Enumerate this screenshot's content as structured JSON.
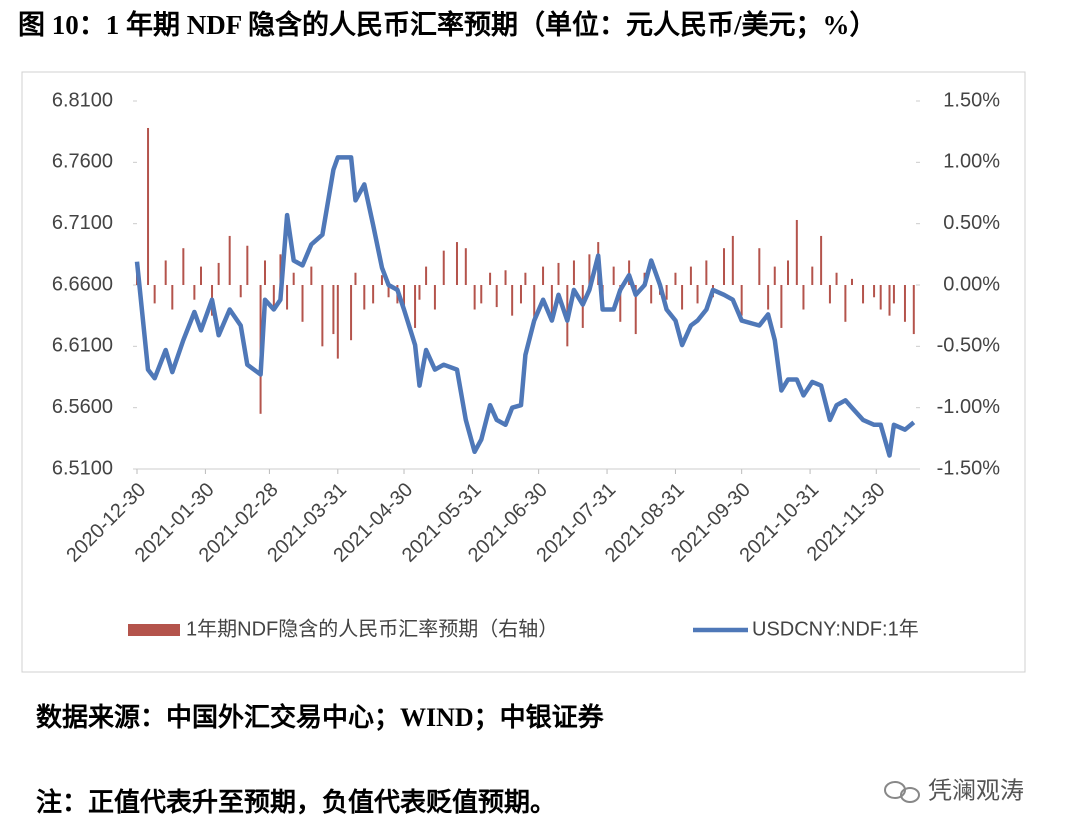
{
  "chart_data": {
    "type": "combo",
    "title": "图 10：1 年期 NDF 隐含的人民币汇率预期（单位：元人民币/美元；%）",
    "x": [
      "2020-12-30",
      "2021-01-04",
      "2021-01-07",
      "2021-01-12",
      "2021-01-15",
      "2021-01-20",
      "2021-01-25",
      "2021-01-28",
      "2021-02-02",
      "2021-02-05",
      "2021-02-10",
      "2021-02-15",
      "2021-02-18",
      "2021-02-24",
      "2021-02-26",
      "2021-03-02",
      "2021-03-05",
      "2021-03-08",
      "2021-03-11",
      "2021-03-15",
      "2021-03-19",
      "2021-03-24",
      "2021-03-29",
      "2021-03-31",
      "2021-04-06",
      "2021-04-08",
      "2021-04-12",
      "2021-04-16",
      "2021-04-20",
      "2021-04-23",
      "2021-04-27",
      "2021-04-30",
      "2021-05-05",
      "2021-05-07",
      "2021-05-10",
      "2021-05-14",
      "2021-05-18",
      "2021-05-24",
      "2021-05-28",
      "2021-06-01",
      "2021-06-04",
      "2021-06-08",
      "2021-06-11",
      "2021-06-15",
      "2021-06-18",
      "2021-06-22",
      "2021-06-24",
      "2021-06-28",
      "2021-07-02",
      "2021-07-06",
      "2021-07-09",
      "2021-07-13",
      "2021-07-16",
      "2021-07-20",
      "2021-07-23",
      "2021-07-27",
      "2021-07-29",
      "2021-08-03",
      "2021-08-06",
      "2021-08-10",
      "2021-08-13",
      "2021-08-17",
      "2021-08-20",
      "2021-08-24",
      "2021-08-27",
      "2021-08-31",
      "2021-09-03",
      "2021-09-07",
      "2021-09-10",
      "2021-09-14",
      "2021-09-17",
      "2021-09-22",
      "2021-09-26",
      "2021-09-30",
      "2021-10-08",
      "2021-10-12",
      "2021-10-15",
      "2021-10-18",
      "2021-10-21",
      "2021-10-25",
      "2021-10-28",
      "2021-11-01",
      "2021-11-05",
      "2021-11-09",
      "2021-11-12",
      "2021-11-16",
      "2021-11-19",
      "2021-11-24",
      "2021-11-29",
      "2021-12-02",
      "2021-12-06",
      "2021-12-08",
      "2021-12-13",
      "2021-12-17"
    ],
    "series": [
      {
        "name": "1年期NDF隐含的人民币汇率预期（右轴）",
        "type": "bar",
        "axis": "y2",
        "color": "#b4544c",
        "values": [
          0.12,
          1.28,
          -0.15,
          0.2,
          -0.2,
          0.3,
          -0.12,
          0.15,
          -0.25,
          0.18,
          0.4,
          -0.1,
          0.32,
          -1.05,
          0.2,
          -0.18,
          0.25,
          -0.2,
          0.1,
          -0.3,
          0.15,
          -0.5,
          -0.4,
          -0.6,
          -0.45,
          0.1,
          -0.2,
          -0.15,
          0.08,
          -0.1,
          -0.15,
          -0.22,
          -0.35,
          -0.12,
          0.15,
          -0.2,
          0.28,
          0.35,
          0.3,
          -0.2,
          -0.15,
          0.1,
          -0.18,
          0.12,
          -0.25,
          -0.15,
          0.1,
          -0.3,
          0.15,
          -0.25,
          0.18,
          -0.5,
          0.2,
          -0.35,
          0.25,
          0.35,
          -0.2,
          0.15,
          -0.3,
          0.2,
          -0.4,
          0.1,
          -0.15,
          -0.08,
          -0.12,
          0.1,
          -0.2,
          0.15,
          -0.15,
          0.2,
          -0.1,
          0.3,
          0.4,
          -0.25,
          0.3,
          -0.2,
          0.15,
          -0.35,
          0.2,
          0.53,
          -0.2,
          0.15,
          0.4,
          -0.15,
          0.1,
          -0.3,
          0.05,
          -0.15,
          -0.1,
          -0.2,
          -0.25,
          -0.15,
          -0.3,
          -0.4
        ]
      },
      {
        "name": "USDCNY:NDF:1年",
        "type": "line",
        "axis": "y",
        "color": "#4f78b8",
        "values": [
          6.679,
          6.591,
          6.584,
          6.607,
          6.589,
          6.615,
          6.638,
          6.623,
          6.648,
          6.619,
          6.64,
          6.627,
          6.595,
          6.587,
          6.648,
          6.64,
          6.648,
          6.717,
          6.68,
          6.676,
          6.693,
          6.701,
          6.754,
          6.764,
          6.764,
          6.729,
          6.742,
          6.709,
          6.674,
          6.66,
          6.656,
          6.64,
          6.611,
          6.578,
          6.607,
          6.591,
          6.595,
          6.591,
          6.55,
          6.524,
          6.534,
          6.562,
          6.55,
          6.546,
          6.56,
          6.562,
          6.603,
          6.631,
          6.648,
          6.631,
          6.652,
          6.631,
          6.656,
          6.644,
          6.656,
          6.684,
          6.64,
          6.64,
          6.656,
          6.668,
          6.652,
          6.66,
          6.68,
          6.66,
          6.64,
          6.631,
          6.611,
          6.627,
          6.631,
          6.64,
          6.656,
          6.652,
          6.648,
          6.631,
          6.627,
          6.636,
          6.615,
          6.574,
          6.583,
          6.583,
          6.57,
          6.581,
          6.578,
          6.55,
          6.562,
          6.566,
          6.56,
          6.55,
          6.546,
          6.546,
          6.521,
          6.546,
          6.542,
          6.548
        ]
      }
    ],
    "xlim": [
      "2020-12-30",
      "2021-12-18"
    ],
    "xticks": [
      "2020-12-30",
      "2021-01-30",
      "2021-02-28",
      "2021-03-31",
      "2021-04-30",
      "2021-05-31",
      "2021-06-30",
      "2021-07-31",
      "2021-08-31",
      "2021-09-30",
      "2021-10-31",
      "2021-11-30"
    ],
    "ylim": [
      6.51,
      6.81
    ],
    "yticks": [
      {
        "value": 6.51,
        "label": "6.5100"
      },
      {
        "value": 6.56,
        "label": "6.5600"
      },
      {
        "value": 6.61,
        "label": "6.6100"
      },
      {
        "value": 6.66,
        "label": "6.6600"
      },
      {
        "value": 6.71,
        "label": "6.7100"
      },
      {
        "value": 6.76,
        "label": "6.7600"
      },
      {
        "value": 6.81,
        "label": "6.8100"
      }
    ],
    "y2lim": [
      -1.5,
      1.5
    ],
    "y2ticks": [
      {
        "value": -1.5,
        "label": "-1.50%"
      },
      {
        "value": -1,
        "label": "-1.00%"
      },
      {
        "value": -0.5,
        "label": "-0.50%"
      },
      {
        "value": 0,
        "label": "0.00%"
      },
      {
        "value": 0.5,
        "label": "0.50%"
      },
      {
        "value": 1,
        "label": "1.00%"
      },
      {
        "value": 1.5,
        "label": "1.50%"
      }
    ],
    "legend": "bottom"
  },
  "source": "数据来源：中国外汇交易中心；WIND；中银证券",
  "note": "注：正值代表升至预期，负值代表贬值预期。",
  "watermark": "凭澜观涛"
}
